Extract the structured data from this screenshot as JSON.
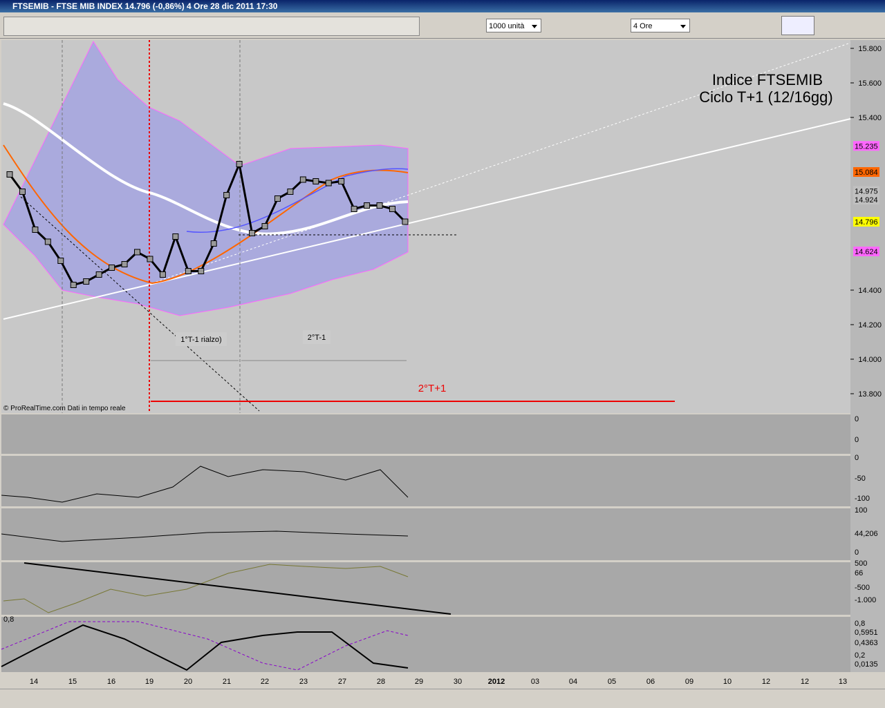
{
  "window_title": "FTSEMIB - FTSE MIB INDEX    14.796 (-0,86%)    4 Ore  28 dic 2011 17:30",
  "toolbar": {
    "units": "1000 unità",
    "timeframe": "4 Ore"
  },
  "annotations": {
    "title_line1": "Indice FTSEMIB",
    "title_line2": "Ciclo T+1 (12/16gg)",
    "cycle_a": "1°T-1 rialzo)",
    "cycle_b": "2°T-1",
    "cycle_c": "2°T+1",
    "credit": "© ProRealTime.com  Dati in tempo reale"
  },
  "date_labels": [
    "14",
    "15",
    "16",
    "19",
    "20",
    "21",
    "22",
    "23",
    "27",
    "28",
    "29",
    "30",
    "2012",
    "03",
    "04",
    "05",
    "06",
    "09",
    "10",
    "12",
    "12",
    "13"
  ],
  "panels": [
    {
      "labels": [
        "0",
        "0"
      ]
    },
    {
      "labels": [
        "0",
        "-50",
        "-100"
      ]
    },
    {
      "labels": [
        "100",
        "44,206",
        "0"
      ]
    },
    {
      "labels": [
        "500",
        "66",
        "-500",
        "-1.000"
      ]
    },
    {
      "labels": [
        "0,8",
        "0,8",
        "0,5951",
        "0,4363",
        "0,2",
        "0,0135"
      ]
    }
  ],
  "chart_data": {
    "type": "line",
    "categories": [
      null,
      null,
      null,
      null,
      null,
      null,
      null,
      null,
      null,
      null,
      null,
      null,
      null,
      null,
      null,
      null,
      null,
      null,
      null,
      null,
      null,
      null,
      null,
      null,
      null,
      null,
      null,
      null,
      null,
      null,
      null,
      null
    ],
    "series": [
      {
        "name": "FTSEMIB",
        "color": "#000000",
        "values": [
          15.07,
          14.97,
          14.75,
          14.68,
          14.57,
          14.43,
          14.45,
          14.49,
          14.53,
          14.55,
          14.62,
          14.58,
          14.49,
          14.71,
          14.51,
          14.51,
          14.67,
          14.95,
          15.13,
          14.73,
          14.77,
          14.93,
          14.97,
          15.04,
          15.03,
          15.02,
          15.03,
          14.87,
          14.89,
          14.89,
          14.87,
          14.796
        ]
      }
    ],
    "ylim": [
      13.708,
      15.848
    ],
    "yticks": [
      {
        "value": 13.8,
        "label": "13.800"
      },
      {
        "value": 14,
        "label": "14.000"
      },
      {
        "value": 14.2,
        "label": "14.200"
      },
      {
        "value": 14.4,
        "label": "14.400"
      },
      {
        "value": 15.4,
        "label": "15.400"
      },
      {
        "value": 15.6,
        "label": "15.600"
      },
      {
        "value": 15.8,
        "label": "15.800"
      }
    ],
    "price_badges": [
      {
        "value": 15.235,
        "label": "15.235",
        "color": "#ff66ff"
      },
      {
        "value": 15.084,
        "label": "15.084",
        "color": "#ff6600"
      },
      {
        "value": 14.975,
        "label": "14.975",
        "color": "#c0c0c0"
      },
      {
        "value": 14.924,
        "label": "14.924",
        "color": "#c0c0c0"
      },
      {
        "value": 14.796,
        "label": "14.796",
        "color": "#ffff00"
      },
      {
        "value": 14.624,
        "label": "14.624",
        "color": "#ff66ff"
      }
    ]
  }
}
